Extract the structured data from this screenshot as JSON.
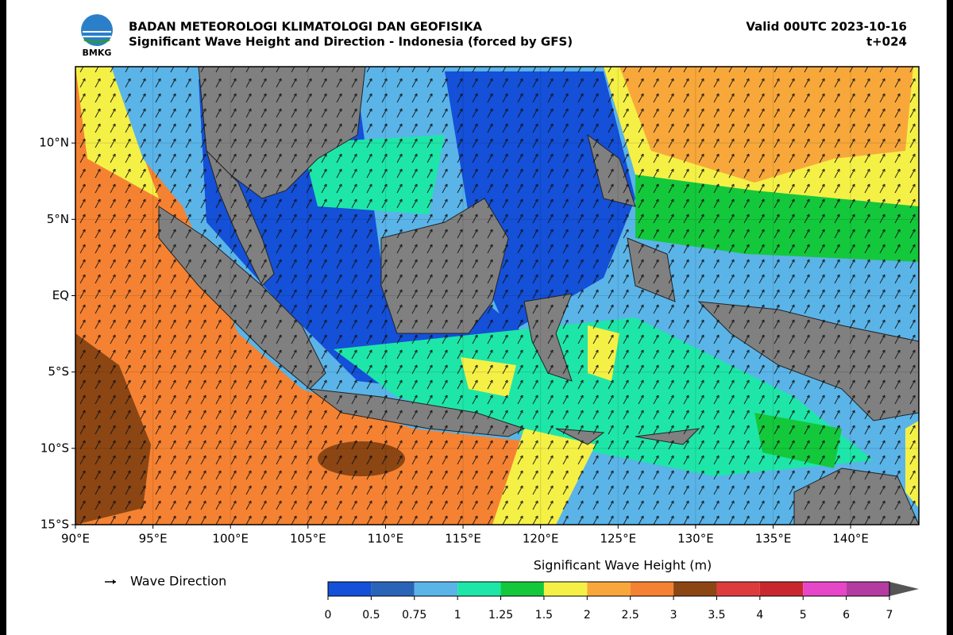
{
  "header": {
    "logo": "BMKG",
    "agency": "BADAN METEOROLOGI KLIMATOLOGI DAN GEOFISIKA",
    "title": "Significant Wave Height and Direction - Indonesia (forced by GFS)",
    "valid": "Valid 00UTC 2023-10-16",
    "lead": "t+024"
  },
  "map": {
    "xlim": [
      90,
      144.4
    ],
    "ylim": [
      -15,
      15
    ],
    "xticks": [
      {
        "value": 90,
        "label": "90°E"
      },
      {
        "value": 95,
        "label": "95°E"
      },
      {
        "value": 100,
        "label": "100°E"
      },
      {
        "value": 105,
        "label": "105°E"
      },
      {
        "value": 110,
        "label": "110°E"
      },
      {
        "value": 115,
        "label": "115°E"
      },
      {
        "value": 120,
        "label": "120°E"
      },
      {
        "value": 125,
        "label": "125°E"
      },
      {
        "value": 130,
        "label": "130°E"
      },
      {
        "value": 135,
        "label": "135°E"
      },
      {
        "value": 140,
        "label": "140°E"
      }
    ],
    "yticks": [
      {
        "value": -15,
        "label": "15°S"
      },
      {
        "value": -10,
        "label": "10°S"
      },
      {
        "value": -5,
        "label": "5°S"
      },
      {
        "value": 0,
        "label": "EQ"
      },
      {
        "value": 5,
        "label": "5°N"
      },
      {
        "value": 10,
        "label": "10°N"
      }
    ]
  },
  "legend": {
    "arrow_label": "Wave Direction"
  },
  "colorbar": {
    "title": "Significant Wave Height (m)",
    "bounds": [
      0,
      0.5,
      0.75,
      1,
      1.25,
      1.5,
      2,
      2.5,
      3,
      3.5,
      4,
      5,
      6,
      7
    ],
    "colors": [
      "#1450d8",
      "#2a64b8",
      "#5ab4e8",
      "#1ee6a8",
      "#14c83c",
      "#f5f046",
      "#f8a83a",
      "#f58232",
      "#8c4614",
      "#dc3c3c",
      "#c8282d",
      "#e646c8",
      "#b43ca0"
    ],
    "extend_color": "#555555"
  }
}
